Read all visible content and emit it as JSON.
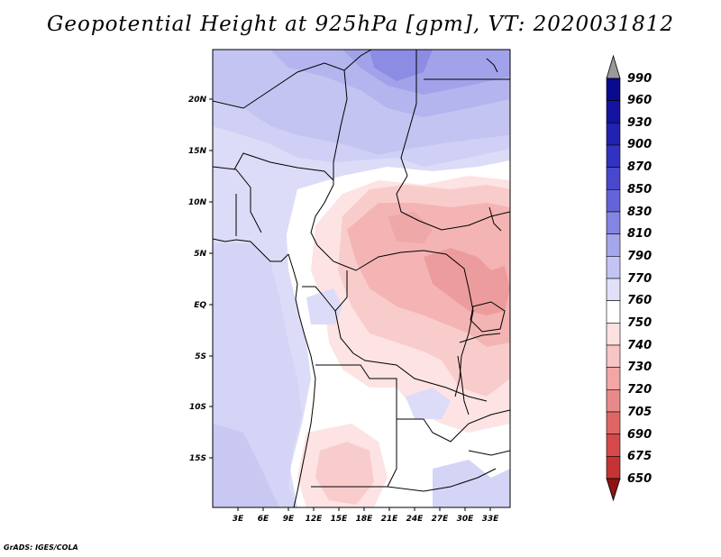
{
  "title": "Geopotential Height at 925hPa [gpm], VT: 2020031812",
  "credit": "GrADS: IGES/COLA",
  "map": {
    "region": "Central Africa",
    "lat_ticks": [
      "20N",
      "15N",
      "10N",
      "5N",
      "EQ",
      "5S",
      "10S",
      "15S"
    ],
    "lon_ticks": [
      "3E",
      "6E",
      "9E",
      "12E",
      "15E",
      "18E",
      "21E",
      "24E",
      "27E",
      "30E",
      "33E"
    ]
  },
  "colorbar": {
    "levels": [
      {
        "label": "990",
        "color": "#0a0a8c"
      },
      {
        "label": "960",
        "color": "#14149e"
      },
      {
        "label": "930",
        "color": "#2222b0"
      },
      {
        "label": "900",
        "color": "#3232c0"
      },
      {
        "label": "870",
        "color": "#4848cc"
      },
      {
        "label": "850",
        "color": "#6464d8"
      },
      {
        "label": "830",
        "color": "#8484e2"
      },
      {
        "label": "810",
        "color": "#a6a6ec"
      },
      {
        "label": "790",
        "color": "#c4c4f4"
      },
      {
        "label": "770",
        "color": "#e0e0fb"
      },
      {
        "label": "760",
        "color": "#ffffff"
      },
      {
        "label": "750",
        "color": "#fde0e0"
      },
      {
        "label": "740",
        "color": "#f8c4c4"
      },
      {
        "label": "730",
        "color": "#f2a6a6"
      },
      {
        "label": "720",
        "color": "#e98a8a"
      },
      {
        "label": "705",
        "color": "#e06666"
      },
      {
        "label": "690",
        "color": "#d44a4a"
      },
      {
        "label": "675",
        "color": "#c43434"
      },
      {
        "label": "650",
        "color": "#a82020"
      }
    ],
    "top_arrow_color": "#9a9a9a",
    "bottom_arrow_color": "#8c1414"
  }
}
